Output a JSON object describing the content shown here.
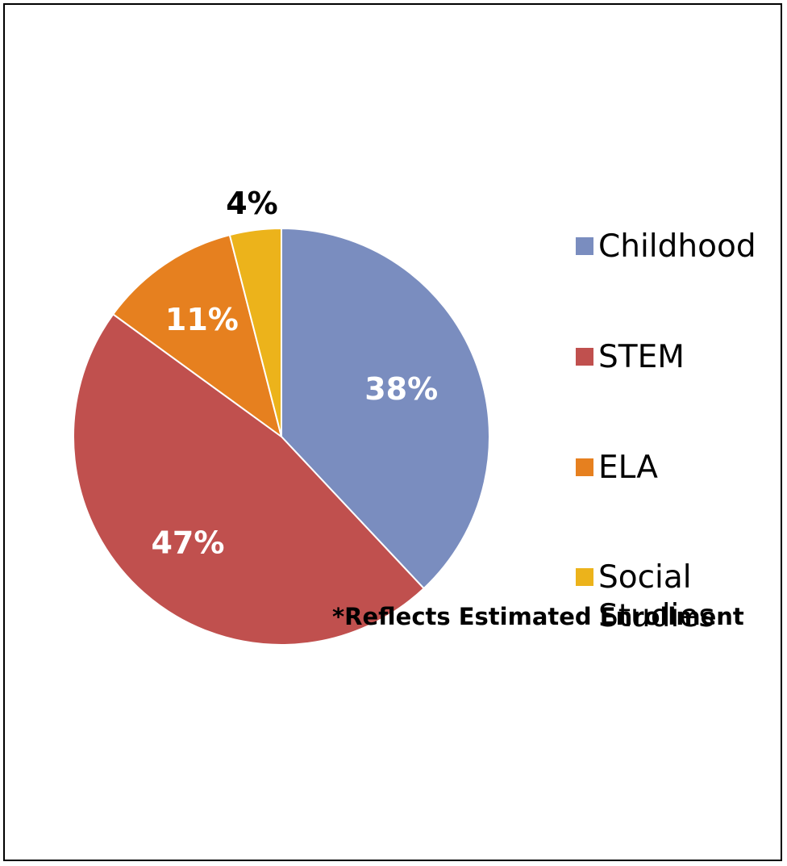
{
  "chart_data": {
    "type": "pie",
    "categories": [
      "Childhood",
      "STEM",
      "ELA",
      "Social Studies"
    ],
    "values": [
      38,
      47,
      11,
      4
    ],
    "data_labels": [
      "38%",
      "47%",
      "11%",
      "4%"
    ],
    "colors": [
      "#7a8dbf",
      "#c0504e",
      "#e6801f",
      "#ecb31b"
    ],
    "label_colors": [
      "#ffffff",
      "#ffffff",
      "#ffffff",
      "#000000"
    ],
    "title": "",
    "legend": {
      "placement": "right",
      "items": [
        {
          "label": "Childhood",
          "color": "#7a8dbf"
        },
        {
          "label": "STEM",
          "color": "#c0504e"
        },
        {
          "label": "ELA",
          "color": "#e6801f"
        },
        {
          "label": "Social Studies",
          "color": "#ecb31b"
        }
      ]
    },
    "footnote": "*Reflects Estimated Enrollment"
  }
}
